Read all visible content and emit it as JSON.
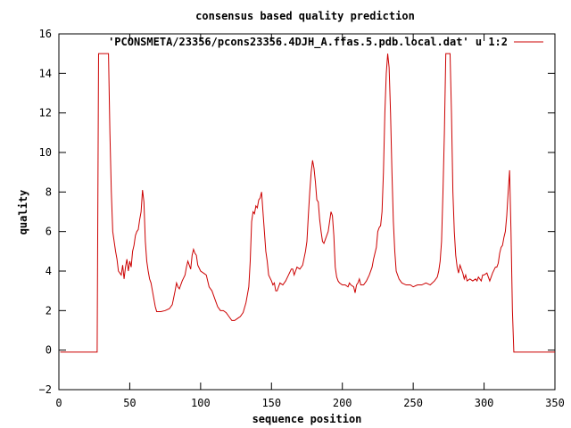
{
  "chart_data": {
    "type": "line",
    "title": "consensus based quality prediction",
    "xlabel": "sequence position",
    "ylabel": "quality",
    "xlim": [
      0,
      350
    ],
    "ylim": [
      -2,
      16
    ],
    "xticks": [
      0,
      50,
      100,
      150,
      200,
      250,
      300,
      350
    ],
    "yticks": [
      -2,
      0,
      2,
      4,
      6,
      8,
      10,
      12,
      14,
      16
    ],
    "grid": false,
    "legend_position": "top-right",
    "series": [
      {
        "name": "'PCONSMETA/23356/pcons23356.4DJH_A.ffas.5.pdb.local.dat' u 1:2",
        "color": "#cc0000",
        "points": [
          [
            1,
            -0.1
          ],
          [
            27,
            -0.1
          ],
          [
            28,
            15
          ],
          [
            35,
            15
          ],
          [
            36,
            11
          ],
          [
            37,
            8
          ],
          [
            38,
            6
          ],
          [
            39,
            5.5
          ],
          [
            40,
            5
          ],
          [
            41,
            4.6
          ],
          [
            42,
            4
          ],
          [
            44,
            3.8
          ],
          [
            45,
            4.3
          ],
          [
            46,
            3.6
          ],
          [
            47,
            4.2
          ],
          [
            48,
            4.6
          ],
          [
            49,
            4
          ],
          [
            50,
            4.5
          ],
          [
            51,
            4.2
          ],
          [
            52,
            5
          ],
          [
            53,
            5.3
          ],
          [
            54,
            5.8
          ],
          [
            55,
            6
          ],
          [
            56,
            6.1
          ],
          [
            57,
            6.6
          ],
          [
            58,
            7
          ],
          [
            59,
            8.1
          ],
          [
            60,
            7.5
          ],
          [
            61,
            5.5
          ],
          [
            62,
            4.5
          ],
          [
            63,
            4
          ],
          [
            64,
            3.6
          ],
          [
            65,
            3.4
          ],
          [
            66,
            3
          ],
          [
            67,
            2.6
          ],
          [
            68,
            2.2
          ],
          [
            69,
            1.95
          ],
          [
            72,
            1.95
          ],
          [
            75,
            2
          ],
          [
            78,
            2.1
          ],
          [
            80,
            2.3
          ],
          [
            82,
            3
          ],
          [
            83,
            3.4
          ],
          [
            84,
            3.2
          ],
          [
            85,
            3.1
          ],
          [
            87,
            3.5
          ],
          [
            89,
            3.8
          ],
          [
            90,
            4.2
          ],
          [
            91,
            4.5
          ],
          [
            92,
            4.3
          ],
          [
            93,
            4.1
          ],
          [
            94,
            4.8
          ],
          [
            95,
            5.1
          ],
          [
            96,
            4.9
          ],
          [
            97,
            4.8
          ],
          [
            98,
            4.3
          ],
          [
            100,
            4
          ],
          [
            102,
            3.9
          ],
          [
            104,
            3.8
          ],
          [
            105,
            3.5
          ],
          [
            106,
            3.2
          ],
          [
            108,
            3
          ],
          [
            110,
            2.6
          ],
          [
            112,
            2.2
          ],
          [
            114,
            2
          ],
          [
            116,
            2
          ],
          [
            118,
            1.9
          ],
          [
            120,
            1.7
          ],
          [
            122,
            1.5
          ],
          [
            124,
            1.5
          ],
          [
            126,
            1.6
          ],
          [
            128,
            1.7
          ],
          [
            130,
            1.9
          ],
          [
            132,
            2.4
          ],
          [
            134,
            3.2
          ],
          [
            135,
            4.5
          ],
          [
            136,
            6.5
          ],
          [
            137,
            7
          ],
          [
            138,
            6.9
          ],
          [
            139,
            7.3
          ],
          [
            140,
            7.2
          ],
          [
            141,
            7.6
          ],
          [
            142,
            7.7
          ],
          [
            143,
            8
          ],
          [
            144,
            7
          ],
          [
            145,
            6
          ],
          [
            146,
            5
          ],
          [
            147,
            4.5
          ],
          [
            148,
            3.8
          ],
          [
            150,
            3.5
          ],
          [
            151,
            3.3
          ],
          [
            152,
            3.4
          ],
          [
            153,
            3
          ],
          [
            154,
            3
          ],
          [
            155,
            3.2
          ],
          [
            156,
            3.4
          ],
          [
            158,
            3.3
          ],
          [
            160,
            3.5
          ],
          [
            162,
            3.8
          ],
          [
            164,
            4.1
          ],
          [
            165,
            4.1
          ],
          [
            166,
            3.8
          ],
          [
            168,
            4.2
          ],
          [
            170,
            4.1
          ],
          [
            172,
            4.3
          ],
          [
            174,
            5
          ],
          [
            175,
            5.5
          ],
          [
            176,
            6.8
          ],
          [
            177,
            8
          ],
          [
            178,
            9
          ],
          [
            179,
            9.6
          ],
          [
            180,
            9.2
          ],
          [
            181,
            8.5
          ],
          [
            182,
            7.6
          ],
          [
            183,
            7.5
          ],
          [
            184,
            6.6
          ],
          [
            185,
            6
          ],
          [
            186,
            5.5
          ],
          [
            187,
            5.4
          ],
          [
            188,
            5.6
          ],
          [
            190,
            6
          ],
          [
            191,
            6.5
          ],
          [
            192,
            7
          ],
          [
            193,
            6.8
          ],
          [
            194,
            5.8
          ],
          [
            195,
            4.2
          ],
          [
            196,
            3.7
          ],
          [
            197,
            3.5
          ],
          [
            198,
            3.4
          ],
          [
            200,
            3.3
          ],
          [
            202,
            3.3
          ],
          [
            204,
            3.2
          ],
          [
            205,
            3.4
          ],
          [
            206,
            3.3
          ],
          [
            208,
            3.2
          ],
          [
            209,
            2.9
          ],
          [
            210,
            3.3
          ],
          [
            211,
            3.4
          ],
          [
            212,
            3.6
          ],
          [
            213,
            3.3
          ],
          [
            215,
            3.3
          ],
          [
            217,
            3.5
          ],
          [
            219,
            3.8
          ],
          [
            221,
            4.2
          ],
          [
            222,
            4.6
          ],
          [
            224,
            5.2
          ],
          [
            225,
            6
          ],
          [
            226,
            6.2
          ],
          [
            227,
            6.3
          ],
          [
            228,
            7
          ],
          [
            229,
            9
          ],
          [
            230,
            12
          ],
          [
            231,
            14
          ],
          [
            232,
            15
          ],
          [
            233,
            14.3
          ],
          [
            234,
            12
          ],
          [
            235,
            9
          ],
          [
            236,
            6.5
          ],
          [
            237,
            5
          ],
          [
            238,
            4
          ],
          [
            240,
            3.6
          ],
          [
            242,
            3.4
          ],
          [
            245,
            3.3
          ],
          [
            248,
            3.3
          ],
          [
            250,
            3.2
          ],
          [
            253,
            3.3
          ],
          [
            256,
            3.3
          ],
          [
            259,
            3.4
          ],
          [
            262,
            3.3
          ],
          [
            265,
            3.5
          ],
          [
            267,
            3.7
          ],
          [
            268,
            4
          ],
          [
            269,
            4.5
          ],
          [
            270,
            5.5
          ],
          [
            271,
            8
          ],
          [
            272,
            11
          ],
          [
            273,
            15
          ],
          [
            276,
            15
          ],
          [
            277,
            12
          ],
          [
            278,
            8
          ],
          [
            279,
            6
          ],
          [
            280,
            4.8
          ],
          [
            281,
            4.2
          ],
          [
            282,
            3.9
          ],
          [
            283,
            4.3
          ],
          [
            284,
            4.1
          ],
          [
            285,
            3.9
          ],
          [
            286,
            3.6
          ],
          [
            287,
            3.8
          ],
          [
            288,
            3.5
          ],
          [
            290,
            3.6
          ],
          [
            292,
            3.5
          ],
          [
            294,
            3.6
          ],
          [
            295,
            3.5
          ],
          [
            296,
            3.7
          ],
          [
            298,
            3.5
          ],
          [
            299,
            3.8
          ],
          [
            300,
            3.8
          ],
          [
            302,
            3.9
          ],
          [
            303,
            3.7
          ],
          [
            304,
            3.5
          ],
          [
            305,
            3.7
          ],
          [
            306,
            3.9
          ],
          [
            308,
            4.2
          ],
          [
            309,
            4.2
          ],
          [
            310,
            4.4
          ],
          [
            311,
            4.9
          ],
          [
            312,
            5.2
          ],
          [
            313,
            5.3
          ],
          [
            314,
            5.7
          ],
          [
            315,
            6
          ],
          [
            316,
            6.8
          ],
          [
            317,
            8
          ],
          [
            318,
            9.1
          ],
          [
            319,
            6
          ],
          [
            320,
            2
          ],
          [
            321,
            -0.1
          ],
          [
            350,
            -0.1
          ]
        ]
      }
    ]
  }
}
